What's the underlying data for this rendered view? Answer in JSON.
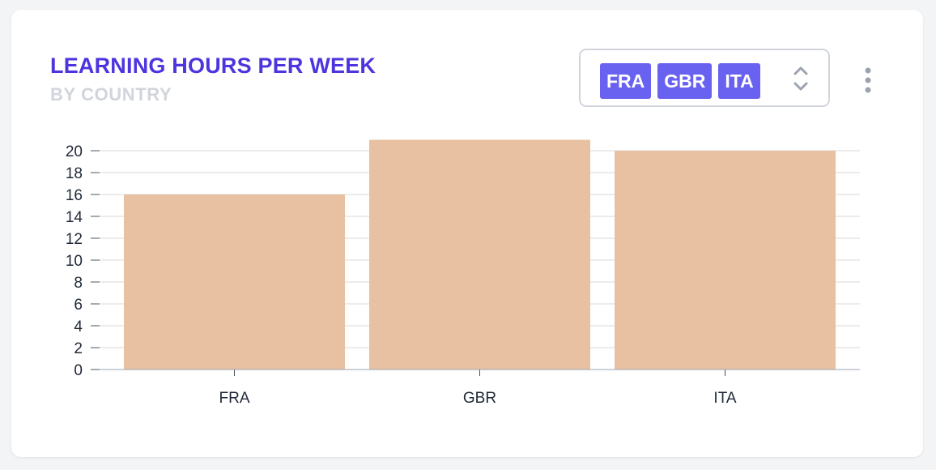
{
  "card": {
    "title": "LEARNING HOURS PER WEEK",
    "subtitle": "BY COUNTRY"
  },
  "selector": {
    "chips": [
      "FRA",
      "GBR",
      "ITA"
    ],
    "icon": "chevron-up-down-icon"
  },
  "menu": {
    "icon": "kebab-menu-icon"
  },
  "colors": {
    "title": "#4c35de",
    "subtitle": "#d1d5db",
    "chip": "#6962f0",
    "bar": "#e8c1a2",
    "grid": "#d9d9d9"
  },
  "chart_data": {
    "type": "bar",
    "title": "LEARNING HOURS PER WEEK",
    "subtitle": "BY COUNTRY",
    "xlabel": "",
    "ylabel": "",
    "categories": [
      "FRA",
      "GBR",
      "ITA"
    ],
    "values": [
      16,
      21,
      20
    ],
    "ylim": [
      0,
      21
    ],
    "yticks": [
      0,
      2,
      4,
      6,
      8,
      10,
      12,
      14,
      16,
      18,
      20
    ],
    "grid": true,
    "legend": "none"
  }
}
